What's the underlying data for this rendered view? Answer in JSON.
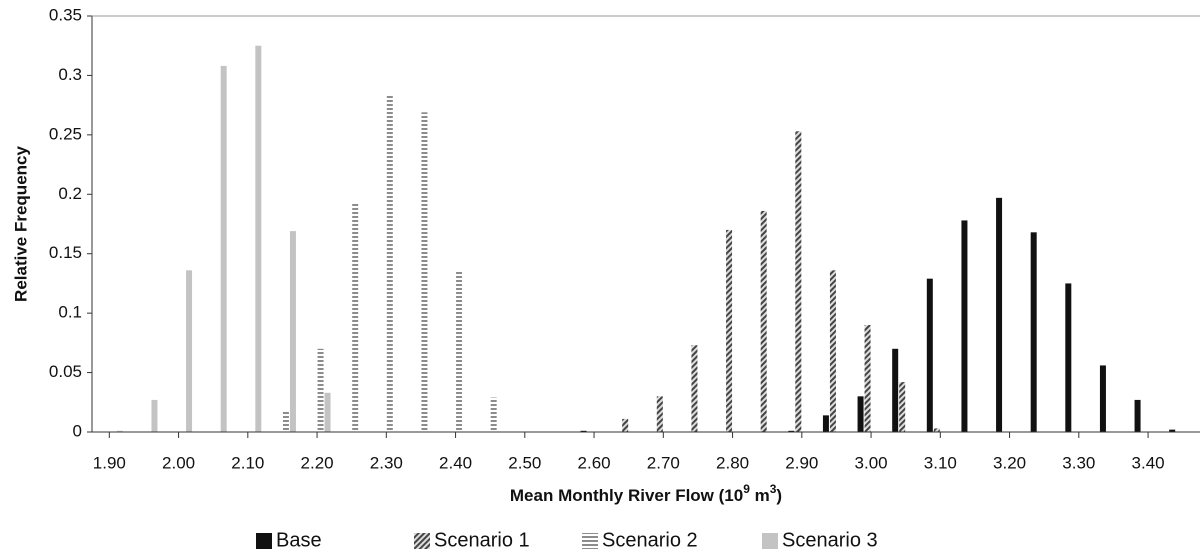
{
  "chart_data": {
    "type": "bar",
    "ylabel": "Relative Frequency",
    "xlabel": [
      "Mean Monthly River Flow (10",
      "9",
      " m",
      "3",
      ")"
    ],
    "categories": [
      "1.90",
      null,
      "2.00",
      null,
      "2.10",
      null,
      "2.20",
      null,
      "2.30",
      null,
      "2.40",
      null,
      "2.50",
      null,
      "2.60",
      null,
      "2.70",
      null,
      "2.80",
      null,
      "2.90",
      null,
      "3.00",
      null,
      "3.10",
      null,
      "3.20",
      null,
      "3.30",
      null,
      "3.40",
      null
    ],
    "series": [
      {
        "name": "Base",
        "color": "#111111",
        "pattern": "solid",
        "values": [
          0,
          0,
          0,
          0,
          0,
          0,
          0,
          0,
          0,
          0,
          0,
          0,
          0,
          0,
          0.001,
          0,
          0,
          0,
          0,
          0,
          0.001,
          0.014,
          0.03,
          0.07,
          0.129,
          0.178,
          0.197,
          0.168,
          0.125,
          0.056,
          0.027,
          0.002
        ]
      },
      {
        "name": "Scenario 1",
        "color": "#555555",
        "pattern": "diagonal",
        "values": [
          0,
          0,
          0,
          0,
          0,
          0,
          0,
          0,
          0,
          0,
          0,
          0,
          0,
          0,
          0,
          0.011,
          0.03,
          0.073,
          0.17,
          0.186,
          0.253,
          0.136,
          0.09,
          0.042,
          0.003,
          0,
          0,
          0,
          0,
          0,
          0,
          0
        ]
      },
      {
        "name": "Scenario 2",
        "color": "#8c8c8c",
        "pattern": "horizontal",
        "values": [
          0,
          0,
          0,
          0,
          0,
          0.017,
          0.07,
          0.192,
          0.283,
          0.269,
          0.136,
          0.029,
          0,
          0,
          0,
          0,
          0,
          0,
          0,
          0,
          0,
          0,
          0,
          0,
          0,
          0,
          0,
          0,
          0,
          0,
          0,
          0
        ]
      },
      {
        "name": "Scenario 3",
        "color": "#c3c3c3",
        "pattern": "solid",
        "values": [
          0.001,
          0.027,
          0.136,
          0.308,
          0.325,
          0.169,
          0.033,
          0,
          0,
          0,
          0,
          0,
          0,
          0,
          0,
          0,
          0,
          0,
          0,
          0,
          0,
          0,
          0,
          0,
          0,
          0,
          0,
          0,
          0,
          0,
          0,
          0
        ]
      }
    ],
    "ylim": [
      0,
      0.35
    ],
    "yticks": [
      0,
      0.05,
      0.1,
      0.15,
      0.2,
      0.25,
      0.3,
      0.35
    ],
    "grid": false
  }
}
